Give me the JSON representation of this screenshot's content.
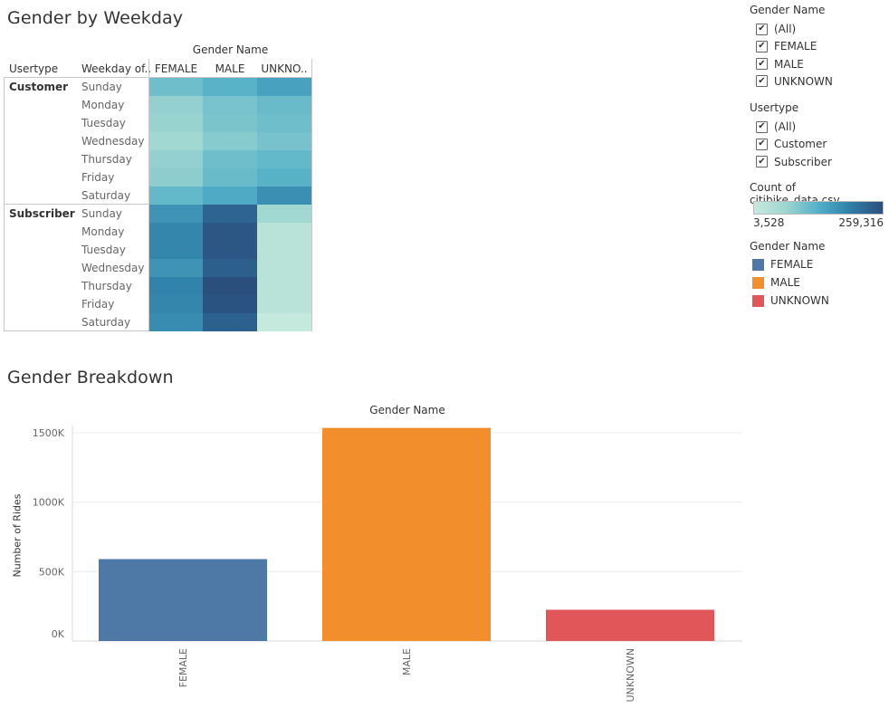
{
  "heatmap": {
    "title": "Gender by Weekday",
    "column_group_header": "Gender Name",
    "row_headers": [
      "Usertype",
      "Weekday of.."
    ],
    "columns": [
      "FEMALE",
      "MALE",
      "UNKNO.."
    ],
    "groups": [
      {
        "name": "Customer",
        "days": [
          "Sunday",
          "Monday",
          "Tuesday",
          "Wednesday",
          "Thursday",
          "Friday",
          "Saturday"
        ]
      },
      {
        "name": "Subscriber",
        "days": [
          "Sunday",
          "Monday",
          "Tuesday",
          "Wednesday",
          "Thursday",
          "Friday",
          "Saturday"
        ]
      }
    ]
  },
  "bar": {
    "title": "Gender Breakdown",
    "header": "Gender Name",
    "ylabel": "Number of Rides",
    "ticks": [
      "1500K",
      "1000K",
      "500K",
      "0K"
    ]
  },
  "filters": {
    "gender": {
      "title": "Gender Name",
      "items": [
        "(All)",
        "FEMALE",
        "MALE",
        "UNKNOWN"
      ]
    },
    "usertype": {
      "title": "Usertype",
      "items": [
        "(All)",
        "Customer",
        "Subscriber"
      ]
    }
  },
  "color_legend": {
    "title": "Count of citibike_data.csv",
    "min_label": "3,528",
    "max_label": "259,316",
    "min": 3528,
    "max": 259316
  },
  "gender_legend": {
    "title": "Gender Name",
    "items": [
      {
        "label": "FEMALE",
        "color": "#4e79a7"
      },
      {
        "label": "MALE",
        "color": "#f28e2b"
      },
      {
        "label": "UNKNOWN",
        "color": "#e15759"
      }
    ]
  },
  "chart_data": [
    {
      "type": "heatmap",
      "title": "Gender by Weekday",
      "x_categories": [
        "FEMALE",
        "MALE",
        "UNKNO.."
      ],
      "y_groups": [
        "Customer",
        "Subscriber"
      ],
      "y_categories": [
        "Sunday",
        "Monday",
        "Tuesday",
        "Wednesday",
        "Thursday",
        "Friday",
        "Saturday"
      ],
      "values": {
        "Customer": [
          [
            20000,
            28000,
            42000
          ],
          [
            12000,
            18000,
            22000
          ],
          [
            11000,
            17000,
            20000
          ],
          [
            9000,
            14000,
            18000
          ],
          [
            12000,
            20000,
            24000
          ],
          [
            13000,
            22000,
            28000
          ],
          [
            24000,
            34000,
            62000
          ]
        ],
        "Subscriber": [
          [
            55000,
            160000,
            9000
          ],
          [
            75000,
            220000,
            5000
          ],
          [
            75000,
            220000,
            5000
          ],
          [
            55000,
            180000,
            5000
          ],
          [
            80000,
            259316,
            5000
          ],
          [
            75000,
            235000,
            5000
          ],
          [
            65000,
            175000,
            3528
          ]
        ]
      },
      "color_range": [
        3528,
        259316
      ]
    },
    {
      "type": "bar",
      "title": "Gender Breakdown",
      "categories": [
        "FEMALE",
        "MALE",
        "UNKNOWN"
      ],
      "values": [
        590000,
        1535000,
        225000
      ],
      "colors": [
        "#4e79a7",
        "#f28e2b",
        "#e15759"
      ],
      "ylabel": "Number of Rides",
      "ylim": [
        0,
        1500000
      ],
      "grid": true
    }
  ]
}
